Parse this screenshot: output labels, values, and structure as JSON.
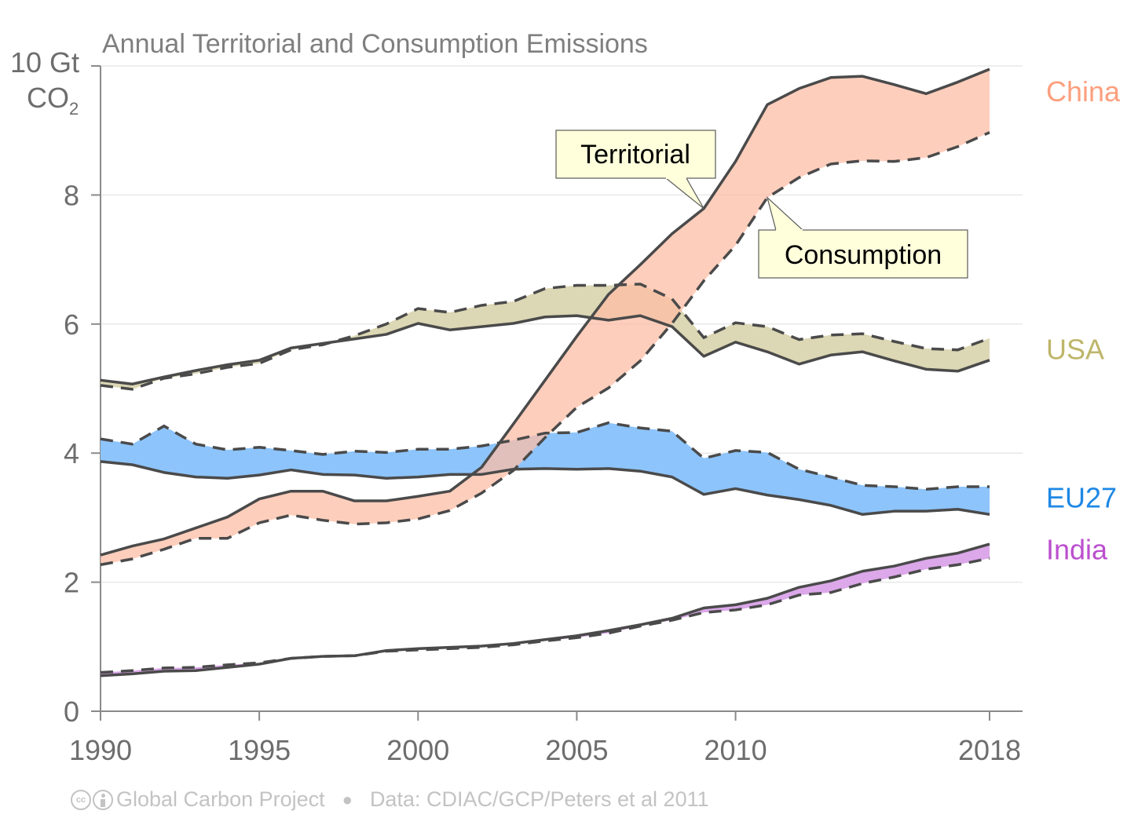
{
  "chart_data": {
    "type": "area",
    "title": "Annual Territorial and Consumption Emissions",
    "ylabel_line1": "10 Gt",
    "ylabel_line2": "CO",
    "ylabel_sub": "2",
    "xlabel": "",
    "ylim": [
      0,
      10
    ],
    "xlim": [
      1990,
      2018
    ],
    "grid": true,
    "yticks": [
      0,
      2,
      4,
      6,
      8
    ],
    "xticks": [
      1990,
      1995,
      2000,
      2005,
      2010,
      2018
    ],
    "x": [
      1990,
      1991,
      1992,
      1993,
      1994,
      1995,
      1996,
      1997,
      1998,
      1999,
      2000,
      2001,
      2002,
      2003,
      2004,
      2005,
      2006,
      2007,
      2008,
      2009,
      2010,
      2011,
      2012,
      2013,
      2014,
      2015,
      2016,
      2017,
      2018
    ],
    "series": [
      {
        "name": "USA",
        "color": "#beb56a",
        "fill": "#dcd7b4",
        "territorial": [
          5.13,
          5.07,
          5.18,
          5.28,
          5.37,
          5.44,
          5.63,
          5.7,
          5.77,
          5.84,
          6.01,
          5.91,
          5.96,
          6.01,
          6.11,
          6.13,
          6.06,
          6.13,
          5.96,
          5.5,
          5.72,
          5.57,
          5.38,
          5.52,
          5.57,
          5.43,
          5.3,
          5.27,
          5.44
        ],
        "consumption": [
          5.05,
          4.99,
          5.16,
          5.23,
          5.33,
          5.39,
          5.6,
          5.68,
          5.82,
          6.0,
          6.24,
          6.18,
          6.29,
          6.35,
          6.55,
          6.6,
          6.6,
          6.62,
          6.39,
          5.79,
          6.02,
          5.96,
          5.76,
          5.83,
          5.85,
          5.73,
          5.62,
          5.6,
          5.78
        ]
      },
      {
        "name": "EU27",
        "color": "#1e88e5",
        "fill": "#8dc4fb",
        "territorial": [
          3.87,
          3.82,
          3.7,
          3.63,
          3.61,
          3.66,
          3.74,
          3.67,
          3.66,
          3.61,
          3.63,
          3.67,
          3.67,
          3.75,
          3.76,
          3.75,
          3.76,
          3.72,
          3.63,
          3.36,
          3.45,
          3.35,
          3.28,
          3.19,
          3.05,
          3.1,
          3.1,
          3.13,
          3.05
        ],
        "consumption": [
          4.22,
          4.14,
          4.42,
          4.14,
          4.05,
          4.09,
          4.04,
          3.98,
          4.03,
          4.01,
          4.06,
          4.06,
          4.11,
          4.2,
          4.31,
          4.32,
          4.47,
          4.39,
          4.34,
          3.92,
          4.04,
          4.01,
          3.75,
          3.63,
          3.5,
          3.48,
          3.44,
          3.48,
          3.48
        ]
      },
      {
        "name": "India",
        "color": "#bb4fce",
        "fill": "#dca8ea",
        "territorial": [
          0.55,
          0.58,
          0.62,
          0.63,
          0.68,
          0.73,
          0.82,
          0.85,
          0.86,
          0.94,
          0.97,
          0.99,
          1.01,
          1.05,
          1.11,
          1.17,
          1.25,
          1.34,
          1.44,
          1.6,
          1.65,
          1.75,
          1.92,
          2.02,
          2.17,
          2.25,
          2.37,
          2.45,
          2.59
        ],
        "consumption": [
          0.6,
          0.63,
          0.67,
          0.68,
          0.72,
          0.75,
          0.82,
          0.85,
          0.86,
          0.93,
          0.95,
          0.97,
          0.99,
          1.03,
          1.09,
          1.14,
          1.21,
          1.32,
          1.41,
          1.53,
          1.57,
          1.65,
          1.8,
          1.84,
          1.98,
          2.08,
          2.2,
          2.27,
          2.37
        ]
      },
      {
        "name": "China",
        "color": "#fc9f7d",
        "fill": "#fdbea6",
        "territorial": [
          2.42,
          2.56,
          2.67,
          2.84,
          3.01,
          3.29,
          3.41,
          3.41,
          3.26,
          3.26,
          3.33,
          3.41,
          3.78,
          4.45,
          5.13,
          5.81,
          6.46,
          6.92,
          7.4,
          7.79,
          8.52,
          9.4,
          9.65,
          9.82,
          9.84,
          9.71,
          9.57,
          9.75,
          9.95
        ],
        "consumption": [
          2.27,
          2.36,
          2.51,
          2.68,
          2.68,
          2.92,
          3.04,
          2.96,
          2.9,
          2.92,
          2.98,
          3.11,
          3.38,
          3.73,
          4.24,
          4.71,
          5.01,
          5.43,
          6.01,
          6.67,
          7.22,
          7.96,
          8.27,
          8.48,
          8.53,
          8.52,
          8.58,
          8.75,
          8.97
        ]
      }
    ],
    "line_style": {
      "territorial": "solid",
      "consumption": "dashed"
    },
    "annotations": [
      {
        "text": "Territorial",
        "points_to": {
          "series": "China",
          "measure": "territorial",
          "year": 2009
        }
      },
      {
        "text": "Consumption",
        "points_to": {
          "series": "China",
          "measure": "consumption",
          "year": 2011
        }
      }
    ],
    "legend": "right, inline labels"
  },
  "footer": {
    "cc_icon": "cc-icon",
    "by_icon": "attribution-icon",
    "org": "Global Carbon Project",
    "source": "Data: CDIAC/GCP/Peters et al 2011"
  }
}
